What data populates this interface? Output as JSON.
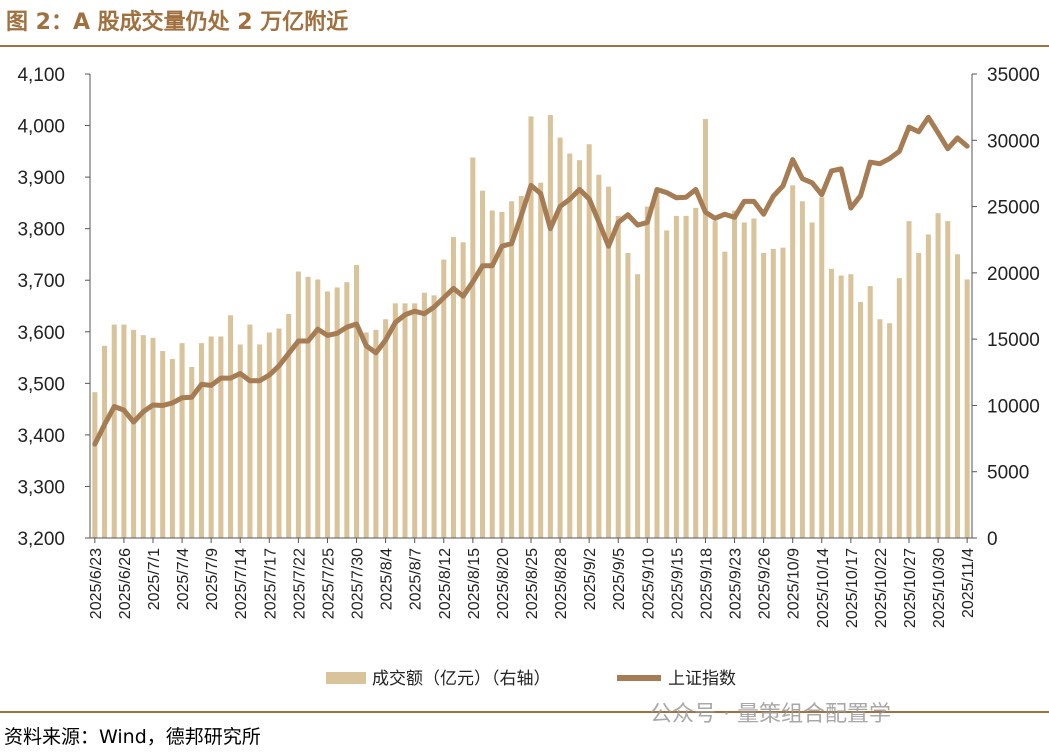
{
  "header": {
    "title": "图 2：A 股成交量仍处 2 万亿附近"
  },
  "footer": {
    "source": "资料来源：Wind，德邦研究所",
    "watermark": "公众号 · 量策组合配置学"
  },
  "colors": {
    "accent": "#a0703f",
    "bar": "#d9c39a",
    "line": "#a57c53"
  },
  "chart_data": {
    "type": "bar+line",
    "dates": [
      "2025/6/23",
      "2025/6/24",
      "2025/6/25",
      "2025/6/26",
      "2025/6/27",
      "2025/6/30",
      "2025/7/1",
      "2025/7/2",
      "2025/7/3",
      "2025/7/4",
      "2025/7/7",
      "2025/7/8",
      "2025/7/9",
      "2025/7/10",
      "2025/7/11",
      "2025/7/14",
      "2025/7/15",
      "2025/7/16",
      "2025/7/17",
      "2025/7/18",
      "2025/7/21",
      "2025/7/22",
      "2025/7/23",
      "2025/7/24",
      "2025/7/25",
      "2025/7/28",
      "2025/7/29",
      "2025/7/30",
      "2025/7/31",
      "2025/8/1",
      "2025/8/4",
      "2025/8/5",
      "2025/8/6",
      "2025/8/7",
      "2025/8/8",
      "2025/8/11",
      "2025/8/12",
      "2025/8/13",
      "2025/8/14",
      "2025/8/15",
      "2025/8/18",
      "2025/8/19",
      "2025/8/20",
      "2025/8/21",
      "2025/8/22",
      "2025/8/25",
      "2025/8/26",
      "2025/8/27",
      "2025/8/28",
      "2025/8/29",
      "2025/9/1",
      "2025/9/2",
      "2025/9/3",
      "2025/9/4",
      "2025/9/5",
      "2025/9/8",
      "2025/9/9",
      "2025/9/10",
      "2025/9/11",
      "2025/9/12",
      "2025/9/15",
      "2025/9/16",
      "2025/9/17",
      "2025/9/18",
      "2025/9/19",
      "2025/9/22",
      "2025/9/23",
      "2025/9/24",
      "2025/9/25",
      "2025/9/26",
      "2025/9/29",
      "2025/9/30",
      "2025/10/9",
      "2025/10/10",
      "2025/10/13",
      "2025/10/14",
      "2025/10/15",
      "2025/10/16",
      "2025/10/17",
      "2025/10/20",
      "2025/10/21",
      "2025/10/22",
      "2025/10/23",
      "2025/10/24",
      "2025/10/27",
      "2025/10/28",
      "2025/10/29",
      "2025/10/30",
      "2025/10/31",
      "2025/11/3",
      "2025/11/4"
    ],
    "x_tick_labels": [
      "2025/6/23",
      "2025/6/26",
      "2025/7/1",
      "2025/7/4",
      "2025/7/9",
      "2025/7/14",
      "2025/7/17",
      "2025/7/22",
      "2025/7/25",
      "2025/7/30",
      "2025/8/4",
      "2025/8/7",
      "2025/8/12",
      "2025/8/15",
      "2025/8/20",
      "2025/8/25",
      "2025/8/28",
      "2025/9/2",
      "2025/9/5",
      "2025/9/10",
      "2025/9/15",
      "2025/9/18",
      "2025/9/23",
      "2025/9/26",
      "2025/10/9",
      "2025/10/14",
      "2025/10/17",
      "2025/10/22",
      "2025/10/27",
      "2025/10/30",
      "2025/11/4"
    ],
    "x_tick_every": 3,
    "series": [
      {
        "name": "成交额（亿元）（右轴）",
        "type": "bar",
        "axis": "right",
        "values": [
          11000,
          14500,
          16100,
          16100,
          15700,
          15300,
          15100,
          14100,
          13500,
          14700,
          12900,
          14700,
          15200,
          15200,
          16800,
          14600,
          16100,
          14600,
          15500,
          15800,
          16900,
          20100,
          19700,
          19500,
          18600,
          18900,
          19300,
          20600,
          15500,
          15700,
          16500,
          17700,
          17700,
          17700,
          18500,
          18300,
          21000,
          22700,
          22300,
          28700,
          26200,
          24700,
          24600,
          25400,
          25800,
          31800,
          26800,
          31900,
          30200,
          29000,
          28500,
          29700,
          27400,
          26500,
          24300,
          21500,
          19900,
          25000,
          26100,
          23200,
          24300,
          24300,
          24900,
          31600,
          23900,
          21600,
          24700,
          23800,
          24100,
          21500,
          21800,
          21900,
          26600,
          25400,
          23800,
          25700,
          20300,
          19800,
          19900,
          17800,
          19000,
          16500,
          16200,
          19600,
          23900,
          21500,
          22900,
          24500,
          23900,
          21400,
          19500
        ]
      },
      {
        "name": "上证指数",
        "type": "line",
        "axis": "left",
        "values": [
          3382,
          3420,
          3455,
          3448,
          3425,
          3445,
          3458,
          3457,
          3462,
          3472,
          3473,
          3498,
          3496,
          3510,
          3510,
          3519,
          3505,
          3505,
          3516,
          3534,
          3558,
          3582,
          3582,
          3605,
          3593,
          3597,
          3609,
          3615,
          3573,
          3559,
          3584,
          3618,
          3633,
          3640,
          3635,
          3648,
          3666,
          3684,
          3669,
          3697,
          3728,
          3728,
          3766,
          3771,
          3826,
          3884,
          3868,
          3800,
          3843,
          3857,
          3876,
          3858,
          3813,
          3766,
          3812,
          3827,
          3807,
          3812,
          3876,
          3870,
          3860,
          3861,
          3876,
          3832,
          3820,
          3828,
          3822,
          3853,
          3853,
          3828,
          3863,
          3883,
          3934,
          3897,
          3889,
          3866,
          3912,
          3916,
          3840,
          3864,
          3929,
          3926,
          3936,
          3950,
          3997,
          3988,
          4016,
          3986,
          3955,
          3976,
          3960
        ]
      }
    ],
    "left_axis": {
      "min": 3200,
      "max": 4100,
      "ticks": [
        "3,200",
        "3,300",
        "3,400",
        "3,500",
        "3,600",
        "3,700",
        "3,800",
        "3,900",
        "4,000",
        "4,100"
      ]
    },
    "right_axis": {
      "min": 0,
      "max": 35000,
      "ticks": [
        "0",
        "5000",
        "10000",
        "15000",
        "20000",
        "25000",
        "30000",
        "35000"
      ]
    },
    "legend": {
      "placement": "bottom",
      "items": [
        "成交额（亿元）（右轴）",
        "上证指数"
      ]
    },
    "grid": false
  }
}
